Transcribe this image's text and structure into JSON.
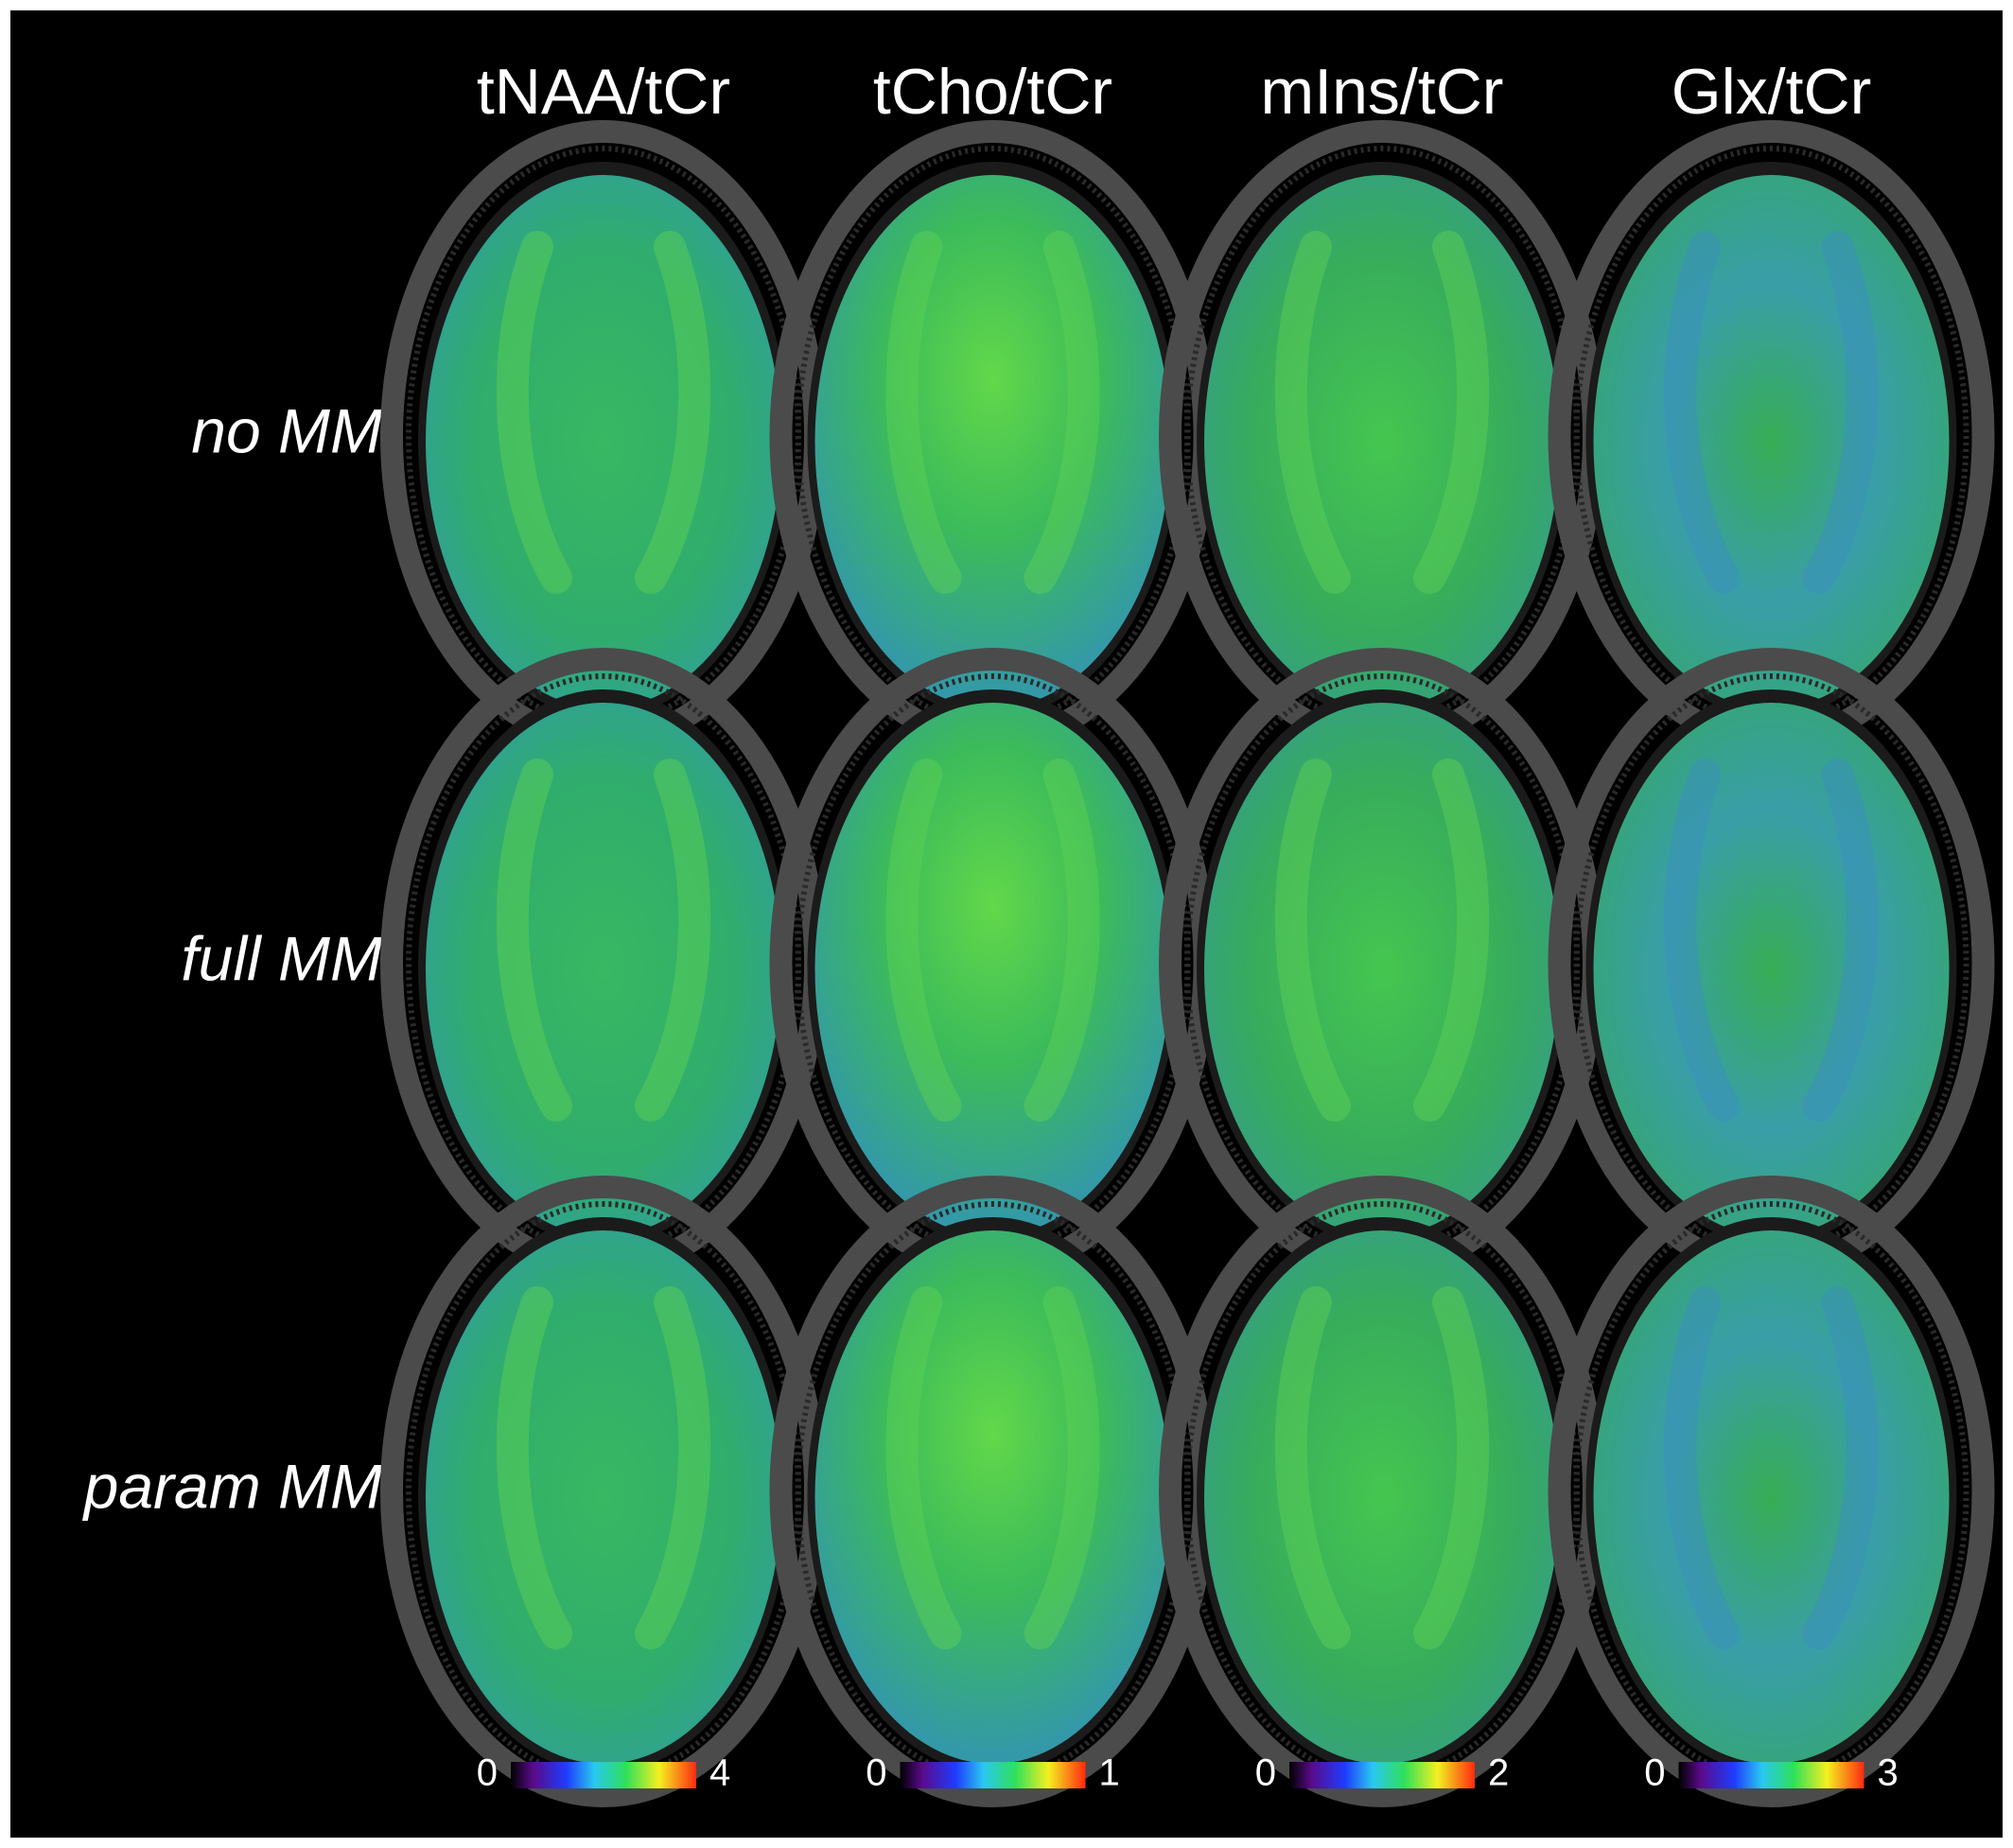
{
  "columns": [
    {
      "title": "tNAA/tCr",
      "colorbar": {
        "min": 0,
        "max": 4
      }
    },
    {
      "title": "tCho/tCr",
      "colorbar": {
        "min": 0,
        "max": 1
      }
    },
    {
      "title": "mIns/tCr",
      "colorbar": {
        "min": 0,
        "max": 2
      }
    },
    {
      "title": "Glx/tCr",
      "colorbar": {
        "min": 0,
        "max": 3
      }
    }
  ],
  "rows": [
    {
      "label": "no MM"
    },
    {
      "label": "full MM"
    },
    {
      "label": "param MM"
    }
  ]
}
